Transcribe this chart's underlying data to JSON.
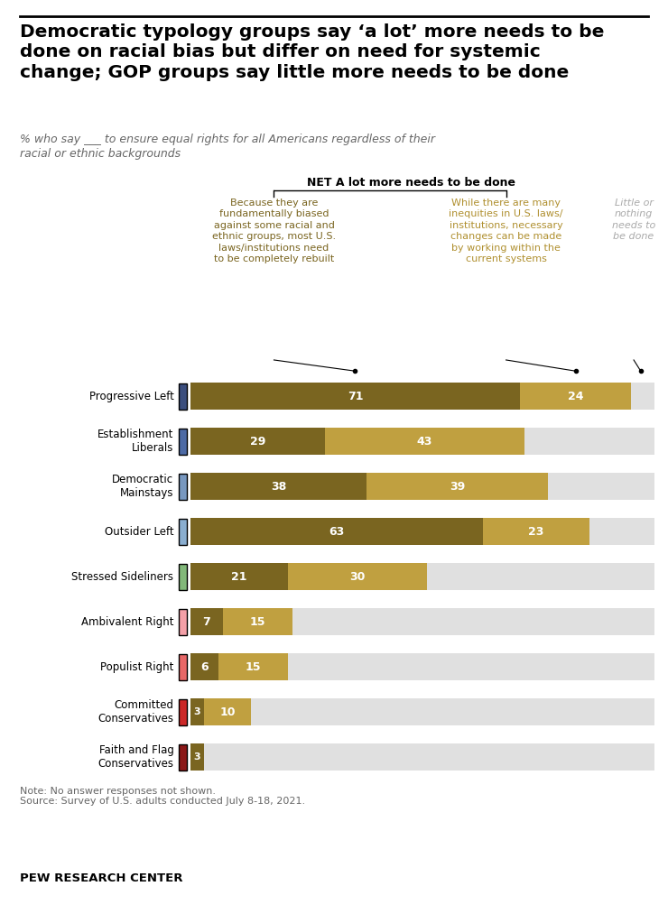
{
  "title": "Democratic typology groups say ‘a lot’ more needs to be\ndone on racial bias but differ on need for systemic\nchange; GOP groups say little more needs to be done",
  "subtitle": "% who say ___ to ensure equal rights for all Americans regardless of their\nracial or ethnic backgrounds",
  "categories": [
    "Progressive Left",
    "Establishment\nLiberals",
    "Democratic\nMainstays",
    "Outsider Left",
    "Stressed Sideliners",
    "Ambivalent Right",
    "Populist Right",
    "Committed\nConservatives",
    "Faith and Flag\nConservatives"
  ],
  "col1_values": [
    71,
    29,
    38,
    63,
    21,
    7,
    6,
    3,
    3
  ],
  "col2_values": [
    24,
    43,
    39,
    23,
    30,
    15,
    15,
    10,
    0
  ],
  "col1_color": "#7a6520",
  "col2_color": "#c0a040",
  "bg_color": "#e0e0e0",
  "stripe_colors": [
    "#3b4e7e",
    "#4d6aa5",
    "#7898c0",
    "#8aaed0",
    "#82b87a",
    "#f4a0a8",
    "#e86868",
    "#cc2828",
    "#8b1818"
  ],
  "note": "Note: No answer responses not shown.\nSource: Survey of U.S. adults conducted July 8-18, 2021.",
  "footer": "PEW RESEARCH CENTER",
  "col1_label": "Because they are\nfundamentally biased\nagainst some racial and\nethnic groups, most U.S.\nlaws/institutions need\nto be completely rebuilt",
  "col2_label": "While there are many\ninequities in U.S. laws/\ninstitutions, necessary\nchanges can be made\nby working within the\ncurrent systems",
  "col3_label": "Little or\nnothing\nneeds to\nbe done",
  "net_label": "NET A lot more needs to be done"
}
